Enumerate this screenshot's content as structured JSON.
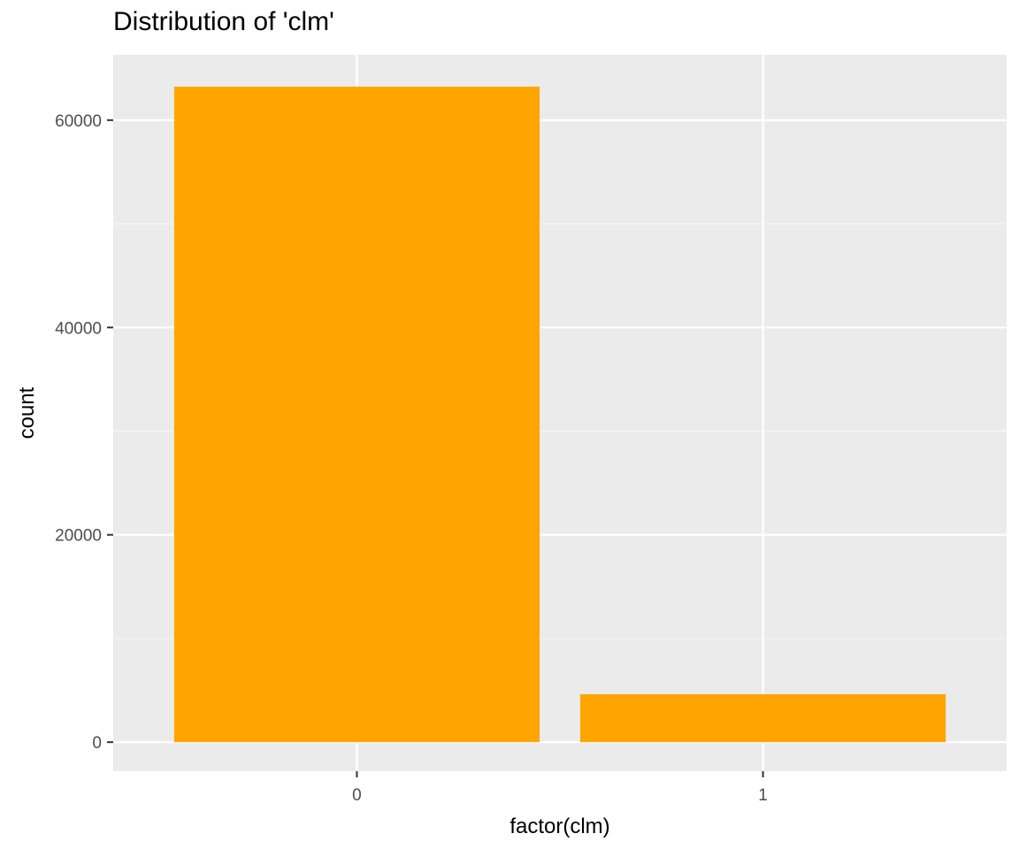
{
  "chart_data": {
    "type": "bar",
    "title": "Distribution of 'clm'",
    "xlabel": "factor(clm)",
    "ylabel": "count",
    "categories": [
      "0",
      "1"
    ],
    "values": [
      63232,
      4624
    ],
    "ylim": [
      -2800,
      66300
    ],
    "yticks": [
      0,
      20000,
      40000,
      60000
    ],
    "ytick_labels": [
      "0",
      "20000",
      "40000",
      "60000"
    ],
    "grid": true,
    "legend": "none",
    "colors": {
      "bar": "#FFA500",
      "panel_background": "#EBEBEB",
      "grid_major": "#FFFFFF",
      "grid_minor": "#F7F7F7",
      "tick_label": "#4D4D4D",
      "axis_title": "#000000"
    }
  }
}
